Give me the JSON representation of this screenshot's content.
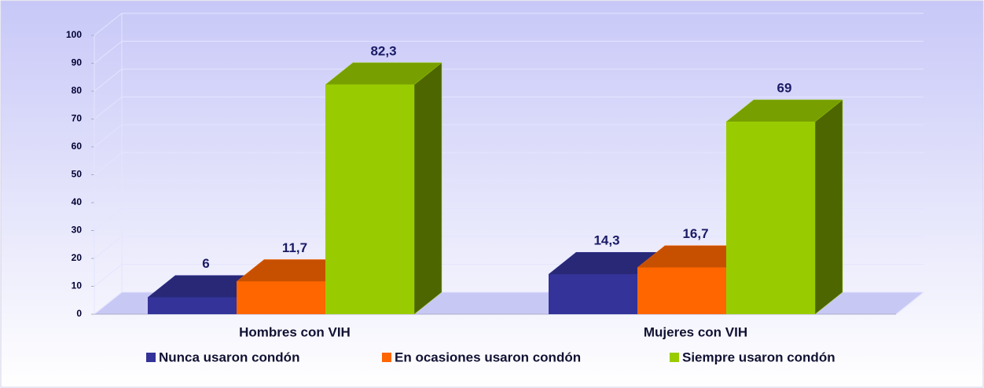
{
  "chart_data": {
    "type": "bar3d",
    "categories": [
      "Hombres con VIH",
      "Mujeres con VIH"
    ],
    "series": [
      {
        "name": "Nunca usaron condón",
        "color": "#333399",
        "values": [
          6,
          14.3
        ],
        "value_labels": [
          "6",
          "14,3"
        ]
      },
      {
        "name": "En ocasiones usaron condón",
        "color": "#ff6600",
        "values": [
          11.7,
          16.7
        ],
        "value_labels": [
          "11,7",
          "16,7"
        ]
      },
      {
        "name": "Siempre usaron condón",
        "color": "#99cc00",
        "values": [
          82.3,
          69
        ],
        "value_labels": [
          "82,3",
          "69"
        ]
      }
    ],
    "ylim": [
      0,
      100
    ],
    "yticks": [
      0,
      10,
      20,
      30,
      40,
      50,
      60,
      70,
      80,
      90,
      100
    ],
    "grid": true,
    "legend": "bottom"
  }
}
